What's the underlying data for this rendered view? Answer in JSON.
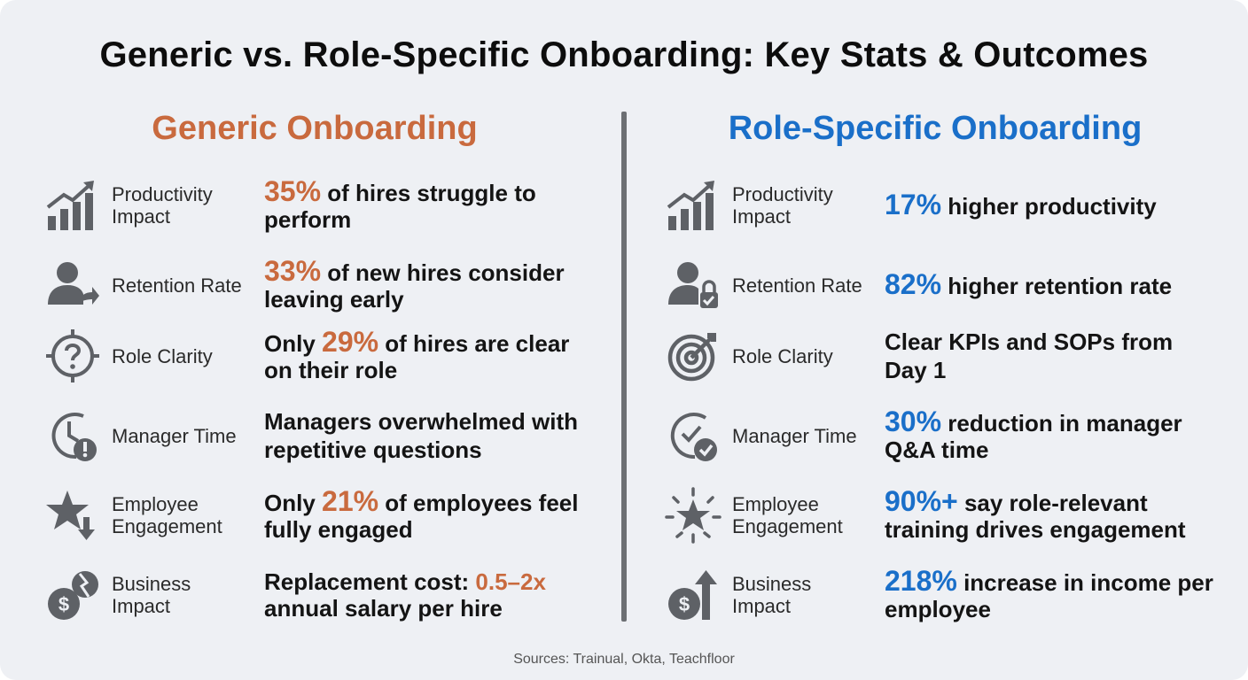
{
  "title": "Generic vs. Role-Specific Onboarding: Key Stats & Outcomes",
  "colors": {
    "generic": "#c96a3e",
    "role": "#1a6fc9",
    "icon": "#5e6166"
  },
  "generic": {
    "heading": "Generic Onboarding",
    "rows": [
      {
        "icon": "bar-chart-up-icon",
        "label": "Productivity Impact",
        "pre": "",
        "highlight": "35%",
        "post": " of hires struggle to perform"
      },
      {
        "icon": "user-leaving-icon",
        "label": "Retention Rate",
        "pre": "",
        "highlight": "33%",
        "post": " of new hires consider leaving early"
      },
      {
        "icon": "question-target-icon",
        "label": "Role Clarity",
        "pre": "Only ",
        "highlight": "29%",
        "post": " of hires are clear on their role"
      },
      {
        "icon": "clock-alert-icon",
        "label": "Manager Time",
        "pre": "Managers overwhelmed with repetitive questions",
        "highlight": "",
        "post": ""
      },
      {
        "icon": "star-down-icon",
        "label": "Employee Engagement",
        "pre": "Only ",
        "highlight": "21%",
        "post": " of employees feel fully engaged"
      },
      {
        "icon": "broken-coin-icon",
        "label": "Business Impact",
        "pre": "Replacement cost: ",
        "highlight": "0.5–2x",
        "post": " annual salary per hire"
      }
    ]
  },
  "role": {
    "heading": "Role-Specific Onboarding",
    "rows": [
      {
        "icon": "bar-chart-up-icon",
        "label": "Productivity Impact",
        "pre": "",
        "highlight": "17%",
        "post": " higher productivity"
      },
      {
        "icon": "user-lock-icon",
        "label": "Retention Rate",
        "pre": "",
        "highlight": "82%",
        "post": " higher retention rate"
      },
      {
        "icon": "target-arrow-icon",
        "label": "Role Clarity",
        "pre": "Clear KPIs and SOPs from Day 1",
        "highlight": "",
        "post": ""
      },
      {
        "icon": "clock-check-icon",
        "label": "Manager Time",
        "pre": "",
        "highlight": "30%",
        "post": " reduction in manager Q&A time"
      },
      {
        "icon": "star-burst-icon",
        "label": "Employee Engagement",
        "pre": "",
        "highlight": "90%+",
        "post": " say role-relevant training drives engagement"
      },
      {
        "icon": "coin-arrow-up-icon",
        "label": "Business Impact",
        "pre": "",
        "highlight": "218%",
        "post": " increase in income per employee"
      }
    ]
  },
  "sources": "Sources: Trainual, Okta, Teachfloor"
}
